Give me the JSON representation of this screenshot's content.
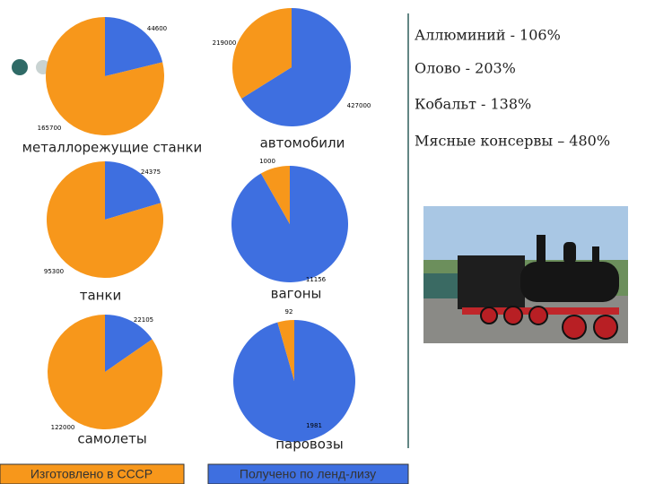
{
  "chart_data": [
    {
      "type": "pie",
      "title": "металлорежущие станки",
      "values": [
        44600,
        165700
      ],
      "colors": [
        "#3e6fe0",
        "#f7971b"
      ]
    },
    {
      "type": "pie",
      "title": "автомобили",
      "values": [
        427000,
        219000
      ],
      "colors": [
        "#3e6fe0",
        "#f7971b"
      ]
    },
    {
      "type": "pie",
      "title": "танки",
      "values": [
        24375,
        95300
      ],
      "colors": [
        "#3e6fe0",
        "#f7971b"
      ]
    },
    {
      "type": "pie",
      "title": "вагоны",
      "values": [
        11156,
        1000
      ],
      "colors": [
        "#3e6fe0",
        "#f7971b"
      ]
    },
    {
      "type": "pie",
      "title": "самолеты",
      "values": [
        22105,
        122000
      ],
      "colors": [
        "#3e6fe0",
        "#f7971b"
      ]
    },
    {
      "type": "pie",
      "title": "паровозы",
      "values": [
        1981,
        92
      ],
      "colors": [
        "#3e6fe0",
        "#f7971b"
      ]
    }
  ],
  "notes": [
    "Аллюминий - 106%",
    "Олово - 203%",
    "Кобальт - 138%",
    "Мясные консервы – 480%"
  ],
  "legend": [
    {
      "label": "Изготовлено в СССР",
      "color": "#f7971b"
    },
    {
      "label": "Получено по ленд-лизу",
      "color": "#3e6fe0"
    }
  ]
}
